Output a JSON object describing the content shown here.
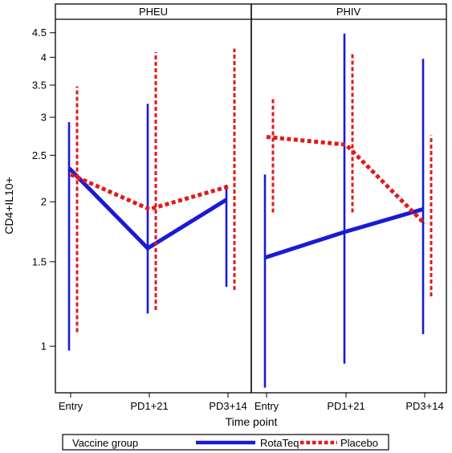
{
  "chart_data": {
    "type": "line",
    "ylabel": "CD4+IL10+",
    "xlabel": "Time point",
    "y_scale": "log",
    "ylim": [
      0.8,
      4.8
    ],
    "yticks": [
      1,
      1.5,
      2,
      2.5,
      3,
      3.5,
      4,
      4.5
    ],
    "ytick_labels": [
      "1",
      "1.5",
      "2",
      "2.5",
      "3",
      "3.5",
      "4",
      "4.5"
    ],
    "categories": [
      "Entry",
      "PD1+21",
      "PD3+14"
    ],
    "legend": {
      "title": "Vaccine group",
      "position": "bottom",
      "entries": [
        "RotaTeq",
        "Placebo"
      ]
    },
    "colors": {
      "RotaTeq": "#1a1ad6",
      "Placebo": "#e01a1a"
    },
    "panels": [
      {
        "label": "PHEU",
        "series": [
          {
            "name": "RotaTeq",
            "values": [
              2.35,
              1.6,
              2.02
            ],
            "lower": [
              0.98,
              1.17,
              1.33
            ],
            "upper": [
              2.93,
              3.2,
              2.17
            ]
          },
          {
            "name": "Placebo",
            "values": [
              2.28,
              1.93,
              2.15
            ],
            "lower": [
              1.07,
              1.19,
              1.31
            ],
            "upper": [
              3.48,
              4.1,
              4.17
            ]
          }
        ]
      },
      {
        "label": "PHIV",
        "series": [
          {
            "name": "RotaTeq",
            "values": [
              1.53,
              1.73,
              1.93
            ],
            "lower": [
              0.82,
              0.92,
              1.06
            ],
            "upper": [
              2.28,
              4.48,
              3.97
            ]
          },
          {
            "name": "Placebo",
            "values": [
              2.73,
              2.63,
              1.8
            ],
            "lower": [
              1.9,
              1.9,
              1.27
            ],
            "upper": [
              3.28,
              4.07,
              2.75
            ]
          }
        ]
      }
    ]
  }
}
